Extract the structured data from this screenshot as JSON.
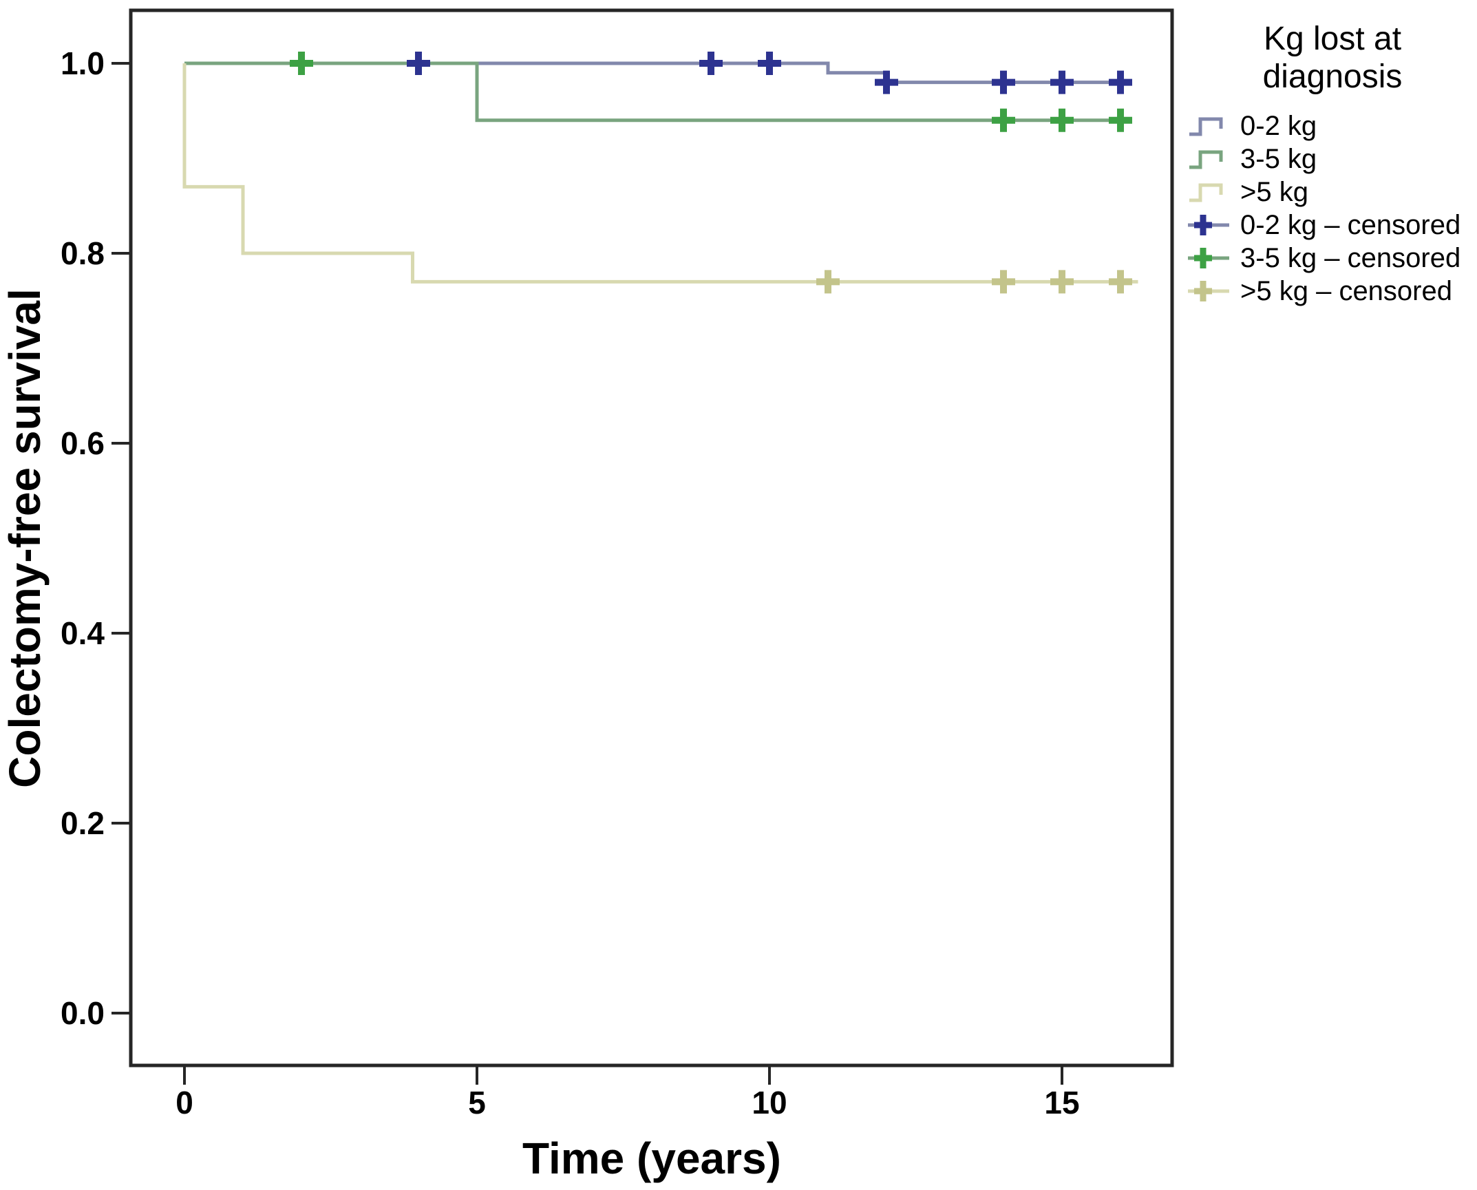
{
  "figure": {
    "x_axis_title": "Time (years)",
    "y_axis_title": "Colectomy-free survival"
  },
  "legend": {
    "title_line1": "Kg lost at",
    "title_line2": "diagnosis"
  },
  "chart_data": {
    "type": "line",
    "subtype": "kaplan-meier-step",
    "title": "",
    "xlabel": "Time (years)",
    "ylabel": "Colectomy-free survival",
    "xlim": [
      -0.92,
      16.85
    ],
    "ylim": [
      -0.035,
      1.056
    ],
    "grid": false,
    "legend_position": "right-top",
    "legend_title": "Kg lost at diagnosis",
    "x_ticks": [
      0,
      5,
      10,
      15
    ],
    "x_tick_labels": [
      "0",
      "5",
      "10",
      "15"
    ],
    "y_ticks": [
      0.0,
      0.2,
      0.4,
      0.6,
      0.8,
      1.0
    ],
    "y_tick_labels": [
      "0.0",
      "0.2",
      "0.4",
      "0.6",
      "0.8",
      "1.0"
    ],
    "frame_color": "#262626",
    "series": [
      {
        "name": "0-2 kg",
        "censored_name": "0-2 kg – censored",
        "color": "#8288ac",
        "censor_color": "#2d3390",
        "steps": [
          [
            0,
            1.0
          ],
          [
            11,
            1.0
          ],
          [
            11,
            0.99
          ],
          [
            12,
            0.99
          ],
          [
            12,
            0.98
          ],
          [
            16.2,
            0.98
          ]
        ],
        "censored": [
          [
            4,
            1.0
          ],
          [
            9,
            1.0
          ],
          [
            10,
            1.0
          ],
          [
            12,
            0.98
          ],
          [
            14,
            0.98
          ],
          [
            15,
            0.98
          ],
          [
            16,
            0.98
          ]
        ]
      },
      {
        "name": "3-5 kg",
        "censored_name": "3-5 kg – censored",
        "color": "#79a47f",
        "censor_color": "#3da144",
        "steps": [
          [
            0,
            1.0
          ],
          [
            5,
            1.0
          ],
          [
            5,
            0.94
          ],
          [
            16.2,
            0.94
          ]
        ],
        "censored": [
          [
            2,
            1.0
          ],
          [
            14,
            0.94
          ],
          [
            15,
            0.94
          ],
          [
            16,
            0.94
          ]
        ]
      },
      {
        "name": ">5 kg",
        "censored_name": ">5 kg – censored",
        "color": "#d8d9b0",
        "censor_color": "#c3c48b",
        "steps": [
          [
            0,
            1.0
          ],
          [
            0,
            0.87
          ],
          [
            1,
            0.87
          ],
          [
            1,
            0.8
          ],
          [
            3.9,
            0.8
          ],
          [
            3.9,
            0.77
          ],
          [
            16.3,
            0.77
          ]
        ],
        "censored": [
          [
            11,
            0.77
          ],
          [
            14,
            0.77
          ],
          [
            15,
            0.77
          ],
          [
            16,
            0.77
          ]
        ]
      }
    ]
  }
}
